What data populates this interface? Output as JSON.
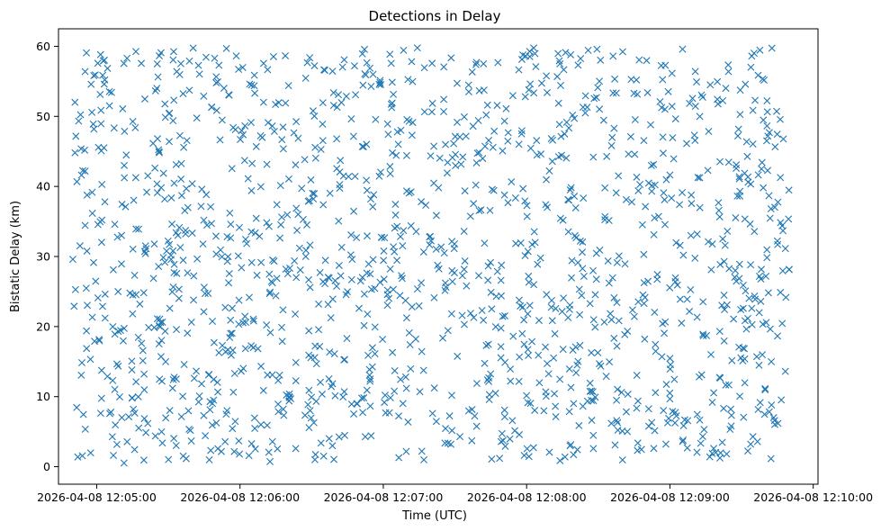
{
  "chart_data": {
    "type": "scatter",
    "title": "Detections in Delay",
    "xlabel": "Time (UTC)",
    "ylabel": "Bistatic Delay (km)",
    "marker": "x",
    "color": "#1f77b4",
    "grid": false,
    "xlim": [
      "2026-04-08 12:04:44",
      "2026-04-08 12:10:02"
    ],
    "ylim": [
      -2.5,
      62.5
    ],
    "xticks": [
      "2026-04-08 12:05:00",
      "2026-04-08 12:06:00",
      "2026-04-08 12:07:00",
      "2026-04-08 12:08:00",
      "2026-04-08 12:09:00",
      "2026-04-08 12:10:00"
    ],
    "yticks": [
      0,
      10,
      20,
      30,
      40,
      50,
      60
    ],
    "x_range": [
      "2026-04-08 12:04:50",
      "2026-04-08 12:09:50"
    ],
    "y_range": [
      0.5,
      59.8
    ],
    "point_count": 1500
  }
}
